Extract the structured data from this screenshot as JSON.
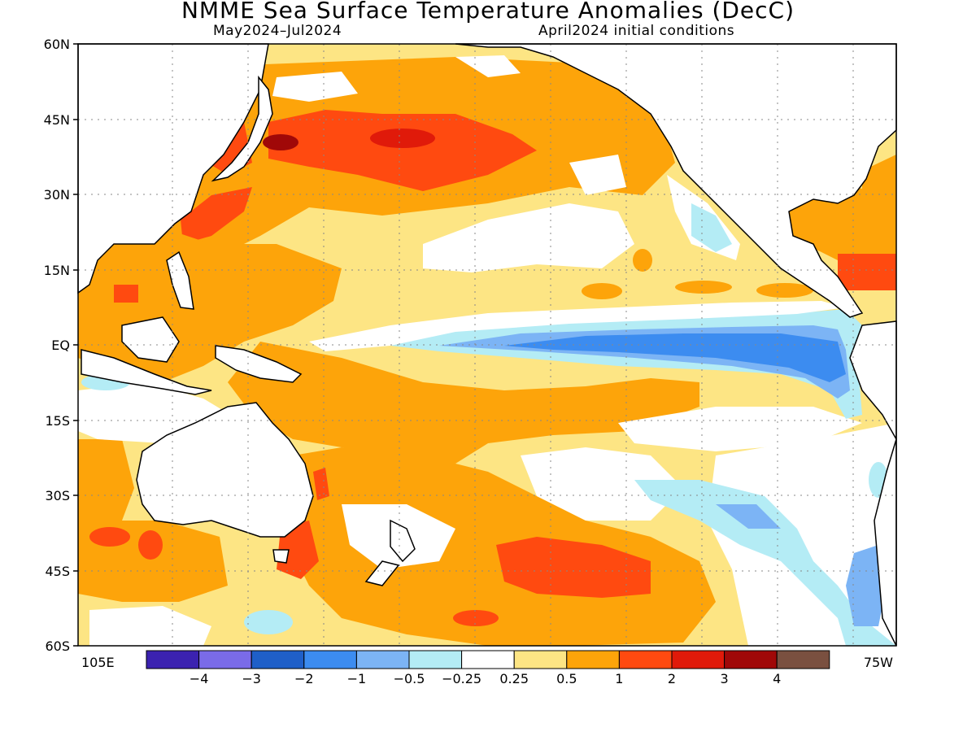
{
  "title": "NMME Sea Surface Temperature Anomalies (DecC)",
  "subtitle_left": "May2024–Jul2024",
  "subtitle_right": "April2024 initial conditions",
  "lat_labels": [
    "60N",
    "45N",
    "30N",
    "15N",
    "EQ",
    "15S",
    "30S",
    "45S",
    "60S"
  ],
  "lon_label_left": "105E",
  "lon_label_right": "75W",
  "colorbar": {
    "colors": [
      "#3b22b0",
      "#7a6be8",
      "#1f5fc8",
      "#3c8cf0",
      "#7cb4f5",
      "#b4ecf5",
      "#ffffff",
      "#fde584",
      "#fda40a",
      "#ff4a10",
      "#e01a0a",
      "#a00808",
      "#7a5040"
    ],
    "labels": [
      "−4",
      "−3",
      "−2",
      "−1",
      "−0.5",
      "−0.25",
      "0.25",
      "0.5",
      "1",
      "2",
      "3",
      "4"
    ]
  }
}
